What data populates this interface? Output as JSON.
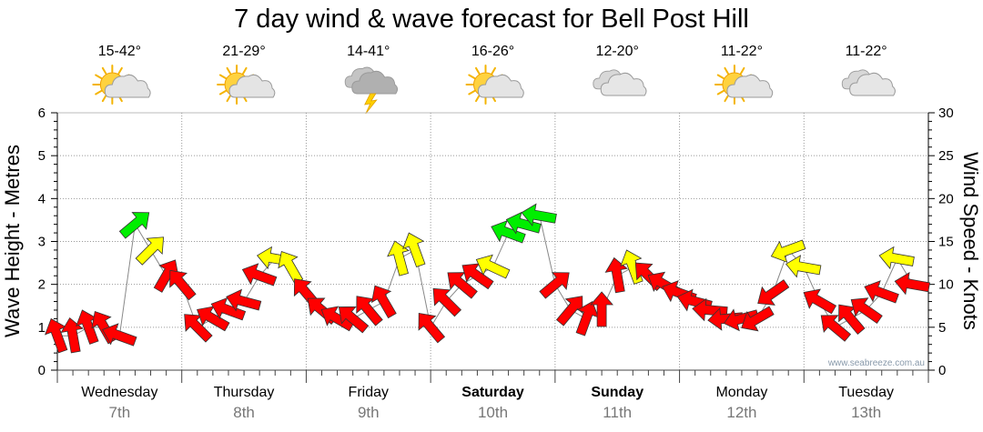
{
  "chart_data": {
    "type": "line",
    "title": "7 day wind & wave forecast for Bell Post Hill",
    "ylabel_left": "Wave Height - Metres",
    "ylabel_right": "Wind Speed - Knots",
    "ylim_left": [
      0,
      6
    ],
    "ylim_right": [
      0,
      30
    ],
    "yticks_left": [
      "0",
      "1",
      "2",
      "3",
      "4",
      "5",
      "6"
    ],
    "yticks_right": [
      "0",
      "5",
      "10",
      "15",
      "20",
      "25",
      "30"
    ],
    "grid": true,
    "days": [
      {
        "name": "Wednesday",
        "date": "7th",
        "bold": false,
        "temp": "15-42°",
        "icon": "sun-cloud-icon"
      },
      {
        "name": "Thursday",
        "date": "8th",
        "bold": false,
        "temp": "21-29°",
        "icon": "sun-cloud-icon"
      },
      {
        "name": "Friday",
        "date": "9th",
        "bold": false,
        "temp": "14-41°",
        "icon": "storm-cloud-icon"
      },
      {
        "name": "Saturday",
        "date": "10th",
        "bold": true,
        "temp": "16-26°",
        "icon": "sun-cloud-icon"
      },
      {
        "name": "Sunday",
        "date": "11th",
        "bold": true,
        "temp": "12-20°",
        "icon": "cloud-icon"
      },
      {
        "name": "Monday",
        "date": "12th",
        "bold": false,
        "temp": "11-22°",
        "icon": "sun-cloud-icon"
      },
      {
        "name": "Tuesday",
        "date": "13th",
        "bold": false,
        "temp": "11-22°",
        "icon": "cloud-icon"
      }
    ],
    "series": [
      {
        "name": "Wind Speed",
        "axis": "right",
        "x_unit": "hours from start",
        "x": [
          0,
          3,
          6,
          9,
          12,
          15,
          18,
          21,
          24,
          27,
          30,
          33,
          36,
          39,
          42,
          45,
          48,
          51,
          54,
          57,
          60,
          63,
          66,
          69,
          72,
          75,
          78,
          81,
          84,
          87,
          90,
          93,
          96,
          99,
          102,
          105,
          108,
          111,
          114,
          117,
          120,
          123,
          126,
          129,
          132,
          135,
          138,
          141,
          144,
          147,
          150,
          153,
          156,
          159,
          162,
          165
        ],
        "values": [
          4,
          4,
          5,
          5,
          4,
          17,
          14,
          11,
          10,
          5,
          6,
          7,
          8,
          11,
          13,
          12,
          9,
          7,
          6,
          6,
          7,
          8,
          13,
          14,
          5,
          8,
          10,
          11,
          12,
          16,
          17,
          18,
          10,
          7,
          6,
          7,
          11,
          12,
          11,
          10,
          9,
          8,
          7,
          6,
          6,
          6,
          9,
          14,
          12,
          8,
          5,
          6,
          7,
          9,
          13,
          10
        ],
        "direction_deg": [
          250,
          260,
          250,
          240,
          200,
          320,
          315,
          300,
          230,
          225,
          210,
          200,
          195,
          200,
          190,
          240,
          230,
          220,
          210,
          220,
          230,
          240,
          255,
          250,
          230,
          225,
          220,
          215,
          205,
          200,
          195,
          190,
          320,
          310,
          290,
          270,
          260,
          250,
          225,
          210,
          200,
          195,
          185,
          175,
          165,
          150,
          145,
          160,
          190,
          210,
          220,
          230,
          215,
          200,
          190,
          190
        ],
        "color_bands": [
          {
            "max": 11,
            "color": "#ff0000"
          },
          {
            "max": 15,
            "color": "#ffff00"
          },
          {
            "max": 30,
            "color": "#00ee00"
          }
        ]
      }
    ]
  },
  "watermark": "www.seabreeze.com.au"
}
